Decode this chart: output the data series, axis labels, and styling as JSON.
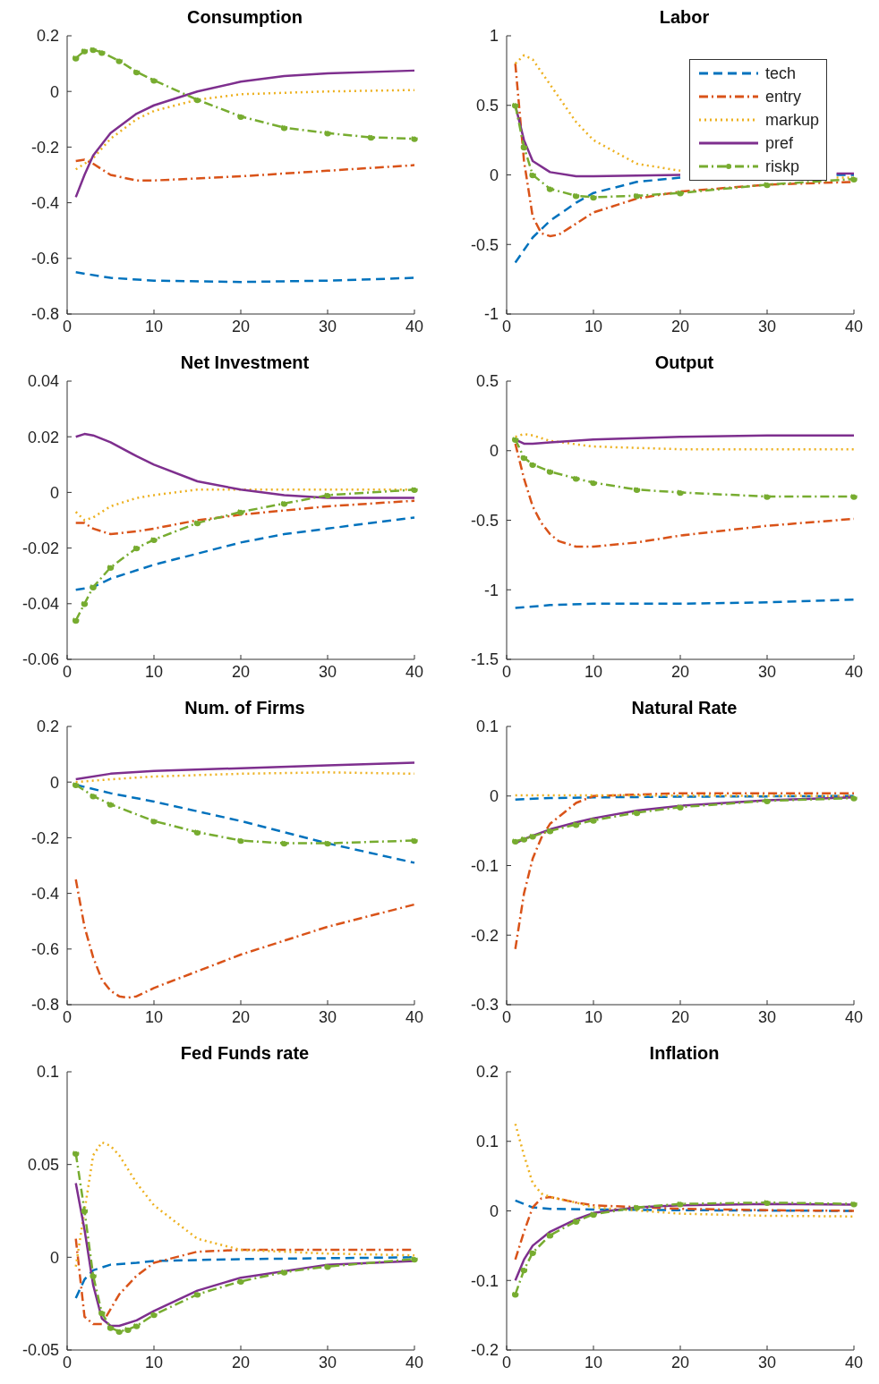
{
  "chart_data": [
    {
      "type": "line",
      "title": "Consumption",
      "xlim": [
        0,
        40
      ],
      "xticks": [
        0,
        10,
        20,
        30,
        40
      ],
      "ylim": [
        -0.8,
        0.2
      ],
      "yticks": [
        -0.8,
        -0.6,
        -0.4,
        -0.2,
        0,
        0.2
      ],
      "legend": false,
      "series": [
        {
          "color": "#0072bd",
          "line_style": "dashed",
          "x": [
            1,
            5,
            10,
            20,
            30,
            40
          ],
          "values": [
            -0.65,
            -0.67,
            -0.68,
            -0.685,
            -0.68,
            -0.67
          ]
        },
        {
          "color": "#d95319",
          "line_style": "dashdot",
          "x": [
            1,
            2,
            3,
            5,
            8,
            10,
            20,
            30,
            40
          ],
          "values": [
            -0.25,
            -0.245,
            -0.26,
            -0.3,
            -0.32,
            -0.32,
            -0.305,
            -0.285,
            -0.265
          ]
        },
        {
          "color": "#edb120",
          "line_style": "dotted",
          "x": [
            1,
            3,
            5,
            8,
            10,
            15,
            20,
            30,
            40
          ],
          "values": [
            -0.28,
            -0.24,
            -0.17,
            -0.1,
            -0.07,
            -0.03,
            -0.01,
            0,
            0.005
          ]
        },
        {
          "color": "#7e2f8e",
          "line_style": "solid",
          "x": [
            1,
            2,
            3,
            5,
            8,
            10,
            15,
            20,
            25,
            30,
            40
          ],
          "values": [
            -0.38,
            -0.3,
            -0.23,
            -0.15,
            -0.08,
            -0.05,
            0,
            0.035,
            0.055,
            0.065,
            0.075
          ]
        },
        {
          "color": "#77ac30",
          "line_style": "dashdot",
          "marker": "circle",
          "x": [
            1,
            2,
            3,
            4,
            6,
            8,
            10,
            15,
            20,
            25,
            30,
            35,
            40
          ],
          "values": [
            0.12,
            0.145,
            0.15,
            0.14,
            0.11,
            0.07,
            0.04,
            -0.03,
            -0.09,
            -0.13,
            -0.15,
            -0.165,
            -0.17
          ]
        }
      ]
    },
    {
      "type": "line",
      "title": "Labor",
      "xlim": [
        0,
        40
      ],
      "xticks": [
        0,
        10,
        20,
        30,
        40
      ],
      "ylim": [
        -1,
        1
      ],
      "yticks": [
        -1,
        -0.5,
        0,
        0.5,
        1
      ],
      "legend": "top right",
      "series": [
        {
          "name": "tech",
          "color": "#0072bd",
          "line_style": "dashed",
          "x": [
            1,
            3,
            5,
            8,
            10,
            15,
            20,
            30,
            38,
            40
          ],
          "values": [
            -0.63,
            -0.45,
            -0.33,
            -0.2,
            -0.13,
            -0.05,
            -0.02,
            null,
            0,
            0
          ]
        },
        {
          "name": "entry",
          "color": "#d95319",
          "line_style": "dashdot",
          "x": [
            1,
            2,
            3,
            4,
            5,
            6,
            8,
            10,
            15,
            20,
            30,
            40
          ],
          "values": [
            0.8,
            0.1,
            -0.3,
            -0.42,
            -0.44,
            -0.43,
            -0.35,
            -0.27,
            -0.17,
            -0.12,
            -0.07,
            -0.05
          ]
        },
        {
          "name": "markup",
          "color": "#edb120",
          "line_style": "dotted",
          "x": [
            1,
            2,
            3,
            5,
            8,
            10,
            15,
            20,
            30,
            38,
            40
          ],
          "values": [
            0.8,
            0.86,
            0.83,
            0.65,
            0.38,
            0.25,
            0.08,
            0.03,
            null,
            -0.02,
            -0.02
          ]
        },
        {
          "name": "pref",
          "color": "#7e2f8e",
          "line_style": "solid",
          "x": [
            1,
            2,
            3,
            5,
            8,
            10,
            20,
            30,
            38,
            40
          ],
          "values": [
            0.5,
            0.25,
            0.1,
            0.02,
            -0.01,
            -0.01,
            0,
            null,
            0.01,
            0.01
          ]
        },
        {
          "name": "riskp",
          "color": "#77ac30",
          "line_style": "dashdot",
          "marker": "circle",
          "x": [
            1,
            2,
            3,
            5,
            8,
            10,
            15,
            20,
            30,
            40
          ],
          "values": [
            0.5,
            0.2,
            0,
            -0.1,
            -0.15,
            -0.16,
            -0.15,
            -0.13,
            -0.07,
            -0.03
          ]
        }
      ]
    },
    {
      "type": "line",
      "title": "Net Investment",
      "xlim": [
        0,
        40
      ],
      "xticks": [
        0,
        10,
        20,
        30,
        40
      ],
      "ylim": [
        -0.06,
        0.04
      ],
      "yticks": [
        -0.06,
        -0.04,
        -0.02,
        0,
        0.02,
        0.04
      ],
      "legend": false,
      "series": [
        {
          "color": "#0072bd",
          "line_style": "dashed",
          "x": [
            1,
            3,
            5,
            10,
            15,
            20,
            25,
            30,
            40
          ],
          "values": [
            -0.035,
            -0.034,
            -0.031,
            -0.026,
            -0.022,
            -0.018,
            -0.015,
            -0.013,
            -0.009
          ]
        },
        {
          "color": "#d95319",
          "line_style": "dashdot",
          "x": [
            1,
            2,
            3,
            5,
            8,
            10,
            15,
            20,
            30,
            40
          ],
          "values": [
            -0.011,
            -0.011,
            -0.013,
            -0.015,
            -0.014,
            -0.013,
            -0.01,
            -0.008,
            -0.005,
            -0.003
          ]
        },
        {
          "color": "#edb120",
          "line_style": "dotted",
          "x": [
            1,
            2,
            3,
            5,
            8,
            10,
            15,
            20,
            30,
            40
          ],
          "values": [
            -0.007,
            -0.01,
            -0.009,
            -0.005,
            -0.002,
            -0.001,
            0.001,
            0.001,
            0.001,
            0.001
          ]
        },
        {
          "color": "#7e2f8e",
          "line_style": "solid",
          "x": [
            1,
            2,
            3,
            5,
            8,
            10,
            15,
            20,
            25,
            30,
            40
          ],
          "values": [
            0.02,
            0.021,
            0.0205,
            0.018,
            0.013,
            0.01,
            0.004,
            0.001,
            -0.001,
            -0.002,
            -0.002
          ]
        },
        {
          "color": "#77ac30",
          "line_style": "dashdot",
          "marker": "circle",
          "x": [
            1,
            2,
            3,
            5,
            8,
            10,
            15,
            20,
            25,
            30,
            40
          ],
          "values": [
            -0.046,
            -0.04,
            -0.034,
            -0.027,
            -0.02,
            -0.017,
            -0.011,
            -0.007,
            -0.004,
            -0.001,
            0.001
          ]
        }
      ]
    },
    {
      "type": "line",
      "title": "Output",
      "xlim": [
        0,
        40
      ],
      "xticks": [
        0,
        10,
        20,
        30,
        40
      ],
      "ylim": [
        -1.5,
        0.5
      ],
      "yticks": [
        -1.5,
        -1,
        -0.5,
        0,
        0.5
      ],
      "legend": false,
      "series": [
        {
          "color": "#0072bd",
          "line_style": "dashed",
          "x": [
            1,
            5,
            10,
            20,
            30,
            40
          ],
          "values": [
            -1.13,
            -1.11,
            -1.1,
            -1.1,
            -1.09,
            -1.07
          ]
        },
        {
          "color": "#d95319",
          "line_style": "dashdot",
          "x": [
            1,
            2,
            3,
            4,
            5,
            6,
            8,
            10,
            15,
            20,
            30,
            40
          ],
          "values": [
            0.05,
            -0.2,
            -0.4,
            -0.52,
            -0.6,
            -0.65,
            -0.69,
            -0.69,
            -0.66,
            -0.61,
            -0.54,
            -0.49
          ]
        },
        {
          "color": "#edb120",
          "line_style": "dotted",
          "x": [
            1,
            2,
            3,
            5,
            10,
            20,
            40
          ],
          "values": [
            0.1,
            0.12,
            0.11,
            0.07,
            0.03,
            0.01,
            0.01
          ]
        },
        {
          "color": "#7e2f8e",
          "line_style": "solid",
          "x": [
            1,
            2,
            3,
            5,
            10,
            20,
            30,
            40
          ],
          "values": [
            0.08,
            0.05,
            0.05,
            0.06,
            0.08,
            0.1,
            0.11,
            0.11
          ]
        },
        {
          "color": "#77ac30",
          "line_style": "dashdot",
          "marker": "circle",
          "x": [
            1,
            2,
            3,
            5,
            8,
            10,
            15,
            20,
            30,
            40
          ],
          "values": [
            0.08,
            -0.05,
            -0.1,
            -0.15,
            -0.2,
            -0.23,
            -0.28,
            -0.3,
            -0.33,
            -0.33
          ]
        }
      ]
    },
    {
      "type": "line",
      "title": "Num. of Firms",
      "xlim": [
        0,
        40
      ],
      "xticks": [
        0,
        10,
        20,
        30,
        40
      ],
      "ylim": [
        -0.8,
        0.2
      ],
      "yticks": [
        -0.8,
        -0.6,
        -0.4,
        -0.2,
        0,
        0.2
      ],
      "legend": false,
      "series": [
        {
          "color": "#0072bd",
          "line_style": "dashed",
          "x": [
            1,
            5,
            10,
            20,
            30,
            40
          ],
          "values": [
            -0.01,
            -0.04,
            -0.07,
            -0.14,
            -0.22,
            -0.29
          ]
        },
        {
          "color": "#d95319",
          "line_style": "dashdot",
          "x": [
            1,
            2,
            3,
            4,
            5,
            6,
            7,
            8,
            10,
            15,
            20,
            30,
            40
          ],
          "values": [
            -0.35,
            -0.52,
            -0.63,
            -0.71,
            -0.75,
            -0.77,
            -0.775,
            -0.77,
            -0.74,
            -0.68,
            -0.62,
            -0.52,
            -0.44
          ]
        },
        {
          "color": "#edb120",
          "line_style": "dotted",
          "x": [
            1,
            5,
            10,
            20,
            30,
            40
          ],
          "values": [
            0,
            0.01,
            0.02,
            0.03,
            0.035,
            0.03
          ]
        },
        {
          "color": "#7e2f8e",
          "line_style": "solid",
          "x": [
            1,
            5,
            10,
            20,
            30,
            40
          ],
          "values": [
            0.01,
            0.03,
            0.04,
            0.05,
            0.06,
            0.07
          ]
        },
        {
          "color": "#77ac30",
          "line_style": "dashdot",
          "marker": "circle",
          "x": [
            1,
            3,
            5,
            10,
            15,
            20,
            25,
            30,
            40
          ],
          "values": [
            -0.01,
            -0.05,
            -0.08,
            -0.14,
            -0.18,
            -0.21,
            -0.22,
            -0.22,
            -0.21
          ]
        }
      ]
    },
    {
      "type": "line",
      "title": "Natural Rate",
      "xlim": [
        0,
        40
      ],
      "xticks": [
        0,
        10,
        20,
        30,
        40
      ],
      "ylim": [
        -0.3,
        0.1
      ],
      "yticks": [
        -0.3,
        -0.2,
        -0.1,
        0,
        0.1
      ],
      "legend": false,
      "series": [
        {
          "color": "#0072bd",
          "line_style": "dashed",
          "x": [
            1,
            5,
            10,
            20,
            40
          ],
          "values": [
            -0.005,
            -0.003,
            -0.002,
            -0.001,
            0
          ]
        },
        {
          "color": "#d95319",
          "line_style": "dashdot",
          "x": [
            1,
            2,
            3,
            4,
            5,
            8,
            10,
            20,
            30,
            40
          ],
          "values": [
            -0.22,
            -0.14,
            -0.09,
            -0.06,
            -0.04,
            -0.01,
            0,
            0.004,
            0.004,
            0.004
          ]
        },
        {
          "color": "#edb120",
          "line_style": "dotted",
          "x": [
            1,
            10,
            40
          ],
          "values": [
            0.001,
            0.001,
            0
          ]
        },
        {
          "color": "#7e2f8e",
          "line_style": "solid",
          "x": [
            1,
            2,
            3,
            5,
            8,
            10,
            15,
            20,
            30,
            40
          ],
          "values": [
            -0.068,
            -0.062,
            -0.057,
            -0.048,
            -0.038,
            -0.032,
            -0.021,
            -0.014,
            -0.006,
            -0.002
          ]
        },
        {
          "color": "#77ac30",
          "line_style": "dashdot",
          "marker": "circle",
          "x": [
            1,
            2,
            3,
            5,
            8,
            10,
            15,
            20,
            30,
            40
          ],
          "values": [
            -0.065,
            -0.062,
            -0.058,
            -0.05,
            -0.041,
            -0.035,
            -0.024,
            -0.016,
            -0.007,
            -0.003
          ]
        }
      ]
    },
    {
      "type": "line",
      "title": "Fed Funds rate",
      "xlim": [
        0,
        40
      ],
      "xticks": [
        0,
        10,
        20,
        30,
        40
      ],
      "ylim": [
        -0.05,
        0.1
      ],
      "yticks": [
        -0.05,
        0,
        0.05,
        0.1
      ],
      "legend": false,
      "series": [
        {
          "color": "#0072bd",
          "line_style": "dashed",
          "x": [
            1,
            2,
            3,
            5,
            8,
            10,
            20,
            40
          ],
          "values": [
            -0.022,
            -0.012,
            -0.007,
            -0.004,
            -0.003,
            -0.002,
            -0.001,
            0
          ]
        },
        {
          "color": "#d95319",
          "line_style": "dashdot",
          "x": [
            1,
            2,
            3,
            4,
            5,
            6,
            8,
            10,
            15,
            20,
            30,
            40
          ],
          "values": [
            0.01,
            -0.032,
            -0.036,
            -0.036,
            -0.028,
            -0.02,
            -0.01,
            -0.003,
            0.003,
            0.004,
            0.004,
            0.004
          ]
        },
        {
          "color": "#edb120",
          "line_style": "dotted",
          "x": [
            1,
            2,
            3,
            4,
            5,
            6,
            8,
            10,
            15,
            20,
            30,
            40
          ],
          "values": [
            -0.005,
            0.025,
            0.055,
            0.062,
            0.06,
            0.055,
            0.04,
            0.028,
            0.01,
            0.004,
            0.002,
            0.001
          ]
        },
        {
          "color": "#7e2f8e",
          "line_style": "solid",
          "x": [
            1,
            2,
            3,
            4,
            5,
            6,
            8,
            10,
            15,
            20,
            30,
            40
          ],
          "values": [
            0.04,
            0.015,
            -0.015,
            -0.033,
            -0.037,
            -0.037,
            -0.034,
            -0.029,
            -0.018,
            -0.011,
            -0.004,
            -0.002
          ]
        },
        {
          "color": "#77ac30",
          "line_style": "dashdot",
          "marker": "circle",
          "x": [
            1,
            2,
            3,
            4,
            5,
            6,
            7,
            8,
            10,
            15,
            20,
            25,
            30,
            40
          ],
          "values": [
            0.056,
            0.025,
            -0.01,
            -0.03,
            -0.038,
            -0.04,
            -0.039,
            -0.037,
            -0.031,
            -0.02,
            -0.013,
            -0.008,
            -0.005,
            -0.001
          ]
        }
      ]
    },
    {
      "type": "line",
      "title": "Inflation",
      "xlim": [
        0,
        40
      ],
      "xticks": [
        0,
        10,
        20,
        30,
        40
      ],
      "ylim": [
        -0.2,
        0.2
      ],
      "yticks": [
        -0.2,
        -0.1,
        0,
        0.1,
        0.2
      ],
      "legend": false,
      "series": [
        {
          "color": "#0072bd",
          "line_style": "dashed",
          "x": [
            1,
            2,
            3,
            5,
            10,
            20,
            40
          ],
          "values": [
            0.015,
            0.01,
            0.005,
            0.003,
            0.002,
            0.001,
            0
          ]
        },
        {
          "color": "#d95319",
          "line_style": "dashdot",
          "x": [
            1,
            2,
            3,
            4,
            5,
            8,
            10,
            20,
            30,
            40
          ],
          "values": [
            -0.07,
            -0.03,
            0.005,
            0.018,
            0.02,
            0.012,
            0.008,
            0.003,
            0.001,
            0
          ]
        },
        {
          "color": "#edb120",
          "line_style": "dotted",
          "x": [
            1,
            2,
            3,
            4,
            5,
            8,
            10,
            20,
            30,
            40
          ],
          "values": [
            0.125,
            0.08,
            0.04,
            0.025,
            0.02,
            0.012,
            0.005,
            -0.004,
            -0.007,
            -0.008
          ]
        },
        {
          "color": "#7e2f8e",
          "line_style": "solid",
          "x": [
            1,
            2,
            3,
            5,
            8,
            10,
            15,
            20,
            30,
            40
          ],
          "values": [
            -0.1,
            -0.07,
            -0.05,
            -0.03,
            -0.012,
            -0.003,
            0.005,
            0.008,
            0.01,
            0.009
          ]
        },
        {
          "color": "#77ac30",
          "line_style": "dashdot",
          "marker": "circle",
          "x": [
            1,
            2,
            3,
            5,
            8,
            10,
            15,
            20,
            30,
            40
          ],
          "values": [
            -0.12,
            -0.085,
            -0.06,
            -0.035,
            -0.015,
            -0.005,
            0.005,
            0.01,
            0.012,
            0.01
          ]
        }
      ]
    }
  ]
}
